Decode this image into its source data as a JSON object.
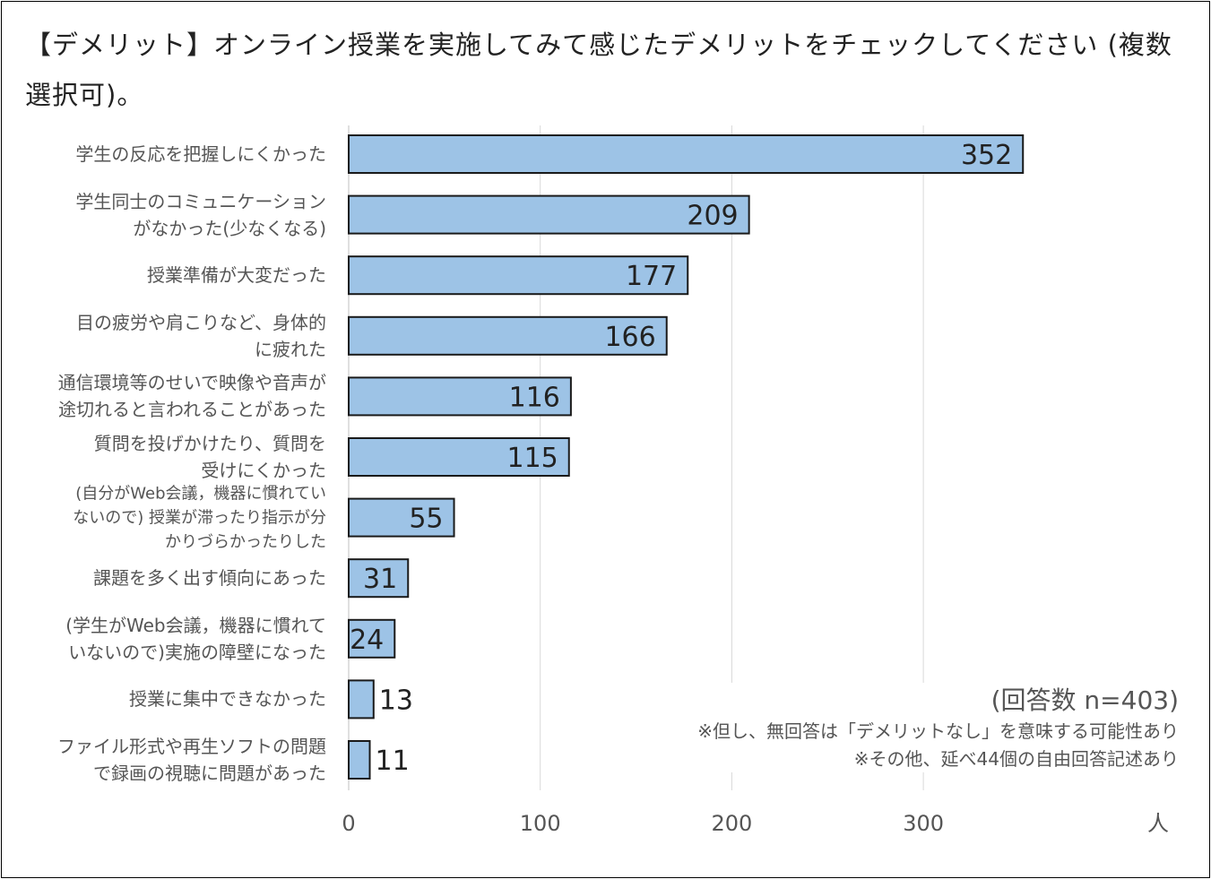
{
  "chart_data": {
    "type": "bar",
    "orientation": "horizontal",
    "title": "【デメリット】オンライン授業を実施してみて感じたデメリットをチェックしてください (複数選択可)。",
    "categories": [
      "学生の反応を把握しにくかった",
      "学生同士のコミュニケーション\nがなかった(少なくなる)",
      "授業準備が大変だった",
      "目の疲労や肩こりなど、身体的\nに疲れた",
      "通信環境等のせいで映像や音声が\n途切れると言われることがあった",
      "質問を投げかけたり、質問を\n受けにくかった",
      "(自分がWeb会議，機器に慣れてい\nないので) 授業が滞ったり指示が分\nかりづらかったりした",
      "課題を多く出す傾向にあった",
      "(学生がWeb会議，機器に慣れて\nいないので)実施の障壁になった",
      "授業に集中できなかった",
      "ファイル形式や再生ソフトの問題\nで録画の視聴に問題があった"
    ],
    "values": [
      352,
      209,
      177,
      166,
      116,
      115,
      55,
      31,
      24,
      13,
      11
    ],
    "xlim": [
      0,
      400
    ],
    "xticks": [
      "0",
      "100",
      "200",
      "300"
    ],
    "xlabel": "人",
    "grid": true,
    "bar_color": "#9DC3E6",
    "bar_edge_color": "#1a1a1a",
    "annotations": [
      "(回答数 n=403)",
      "※但し、無回答は「デメリットなし」を意味する可能性あり",
      "※その他、延べ44個の自由回答記述あり"
    ]
  }
}
